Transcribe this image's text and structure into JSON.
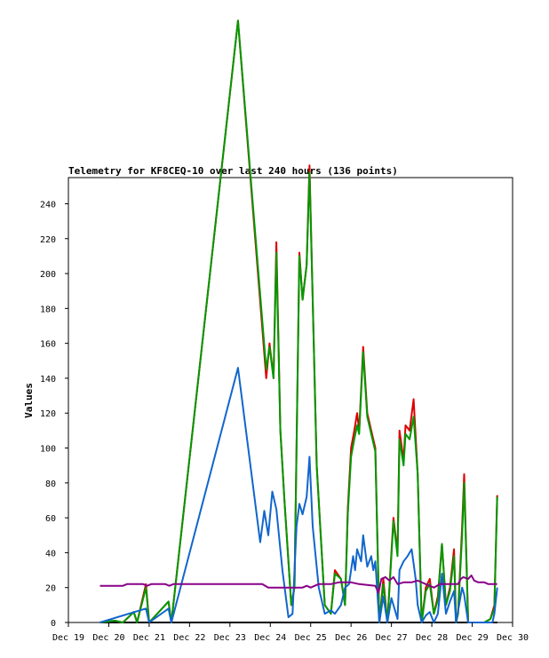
{
  "chart_data": {
    "type": "line",
    "title": "Telemetry for KF8CEQ-10 over last 240 hours (136 points)",
    "xlabel": "",
    "ylabel": "Values",
    "ylim": [
      0,
      255
    ],
    "xlim": [
      19.0,
      30.0
    ],
    "x_ticks": [
      "Dec 19",
      "Dec 20",
      "Dec 21",
      "Dec 22",
      "Dec 23",
      "Dec 24",
      "Dec 25",
      "Dec 26",
      "Dec 27",
      "Dec 28",
      "Dec 29",
      "Dec 30"
    ],
    "y_ticks": [
      0,
      20,
      40,
      60,
      80,
      100,
      120,
      140,
      160,
      180,
      200,
      220,
      240
    ],
    "grid": false,
    "x_unit": "day of December",
    "series": [
      {
        "color": "#000000",
        "points": [
          [
            19.78,
            0
          ],
          [
            29.62,
            0
          ]
        ]
      },
      {
        "color": "#dd0000",
        "points": [
          [
            19.78,
            0
          ],
          [
            20.15,
            1
          ],
          [
            20.35,
            0
          ],
          [
            20.62,
            6
          ],
          [
            20.7,
            0
          ],
          [
            20.92,
            22
          ],
          [
            21.0,
            0
          ],
          [
            21.48,
            12
          ],
          [
            21.55,
            0
          ],
          [
            23.2,
            345
          ],
          [
            23.9,
            140
          ],
          [
            23.98,
            160
          ],
          [
            24.08,
            140
          ],
          [
            24.15,
            218
          ],
          [
            24.25,
            110
          ],
          [
            24.35,
            70
          ],
          [
            24.52,
            10
          ],
          [
            24.6,
            20
          ],
          [
            24.72,
            212
          ],
          [
            24.8,
            185
          ],
          [
            24.9,
            205
          ],
          [
            24.97,
            262
          ],
          [
            25.05,
            185
          ],
          [
            25.15,
            90
          ],
          [
            25.35,
            10
          ],
          [
            25.5,
            5
          ],
          [
            25.6,
            30
          ],
          [
            25.75,
            25
          ],
          [
            25.85,
            10
          ],
          [
            25.92,
            65
          ],
          [
            26.0,
            100
          ],
          [
            26.08,
            110
          ],
          [
            26.15,
            120
          ],
          [
            26.2,
            110
          ],
          [
            26.3,
            158
          ],
          [
            26.4,
            120
          ],
          [
            26.5,
            110
          ],
          [
            26.6,
            100
          ],
          [
            26.7,
            0
          ],
          [
            26.8,
            25
          ],
          [
            26.9,
            0
          ],
          [
            27.0,
            40
          ],
          [
            27.05,
            60
          ],
          [
            27.15,
            40
          ],
          [
            27.2,
            110
          ],
          [
            27.3,
            93
          ],
          [
            27.35,
            113
          ],
          [
            27.45,
            110
          ],
          [
            27.55,
            128
          ],
          [
            27.65,
            85
          ],
          [
            27.75,
            0
          ],
          [
            27.85,
            20
          ],
          [
            27.95,
            25
          ],
          [
            28.05,
            5
          ],
          [
            28.15,
            15
          ],
          [
            28.25,
            45
          ],
          [
            28.35,
            10
          ],
          [
            28.45,
            20
          ],
          [
            28.55,
            42
          ],
          [
            28.6,
            0
          ],
          [
            28.65,
            5
          ],
          [
            28.75,
            55
          ],
          [
            28.8,
            85
          ],
          [
            28.9,
            0
          ],
          [
            29.0,
            0
          ],
          [
            29.3,
            0
          ],
          [
            29.45,
            2
          ],
          [
            29.55,
            10
          ],
          [
            29.62,
            73
          ]
        ]
      },
      {
        "color": "#009900",
        "points": [
          [
            19.78,
            0
          ],
          [
            20.15,
            1
          ],
          [
            20.35,
            0
          ],
          [
            20.62,
            6
          ],
          [
            20.7,
            0
          ],
          [
            20.92,
            20
          ],
          [
            21.0,
            0
          ],
          [
            21.48,
            12
          ],
          [
            21.55,
            0
          ],
          [
            23.2,
            345
          ],
          [
            23.9,
            145
          ],
          [
            23.98,
            158
          ],
          [
            24.08,
            140
          ],
          [
            24.15,
            212
          ],
          [
            24.25,
            110
          ],
          [
            24.35,
            70
          ],
          [
            24.52,
            10
          ],
          [
            24.6,
            20
          ],
          [
            24.72,
            210
          ],
          [
            24.8,
            185
          ],
          [
            24.9,
            205
          ],
          [
            24.97,
            258
          ],
          [
            25.05,
            185
          ],
          [
            25.15,
            90
          ],
          [
            25.35,
            10
          ],
          [
            25.5,
            5
          ],
          [
            25.6,
            28
          ],
          [
            25.75,
            25
          ],
          [
            25.85,
            10
          ],
          [
            25.92,
            62
          ],
          [
            26.0,
            95
          ],
          [
            26.08,
            105
          ],
          [
            26.15,
            113
          ],
          [
            26.2,
            108
          ],
          [
            26.3,
            155
          ],
          [
            26.4,
            118
          ],
          [
            26.5,
            108
          ],
          [
            26.6,
            98
          ],
          [
            26.7,
            0
          ],
          [
            26.8,
            22
          ],
          [
            26.9,
            0
          ],
          [
            27.0,
            38
          ],
          [
            27.05,
            58
          ],
          [
            27.15,
            38
          ],
          [
            27.2,
            105
          ],
          [
            27.3,
            90
          ],
          [
            27.35,
            108
          ],
          [
            27.45,
            105
          ],
          [
            27.55,
            118
          ],
          [
            27.65,
            85
          ],
          [
            27.75,
            0
          ],
          [
            27.85,
            18
          ],
          [
            27.95,
            22
          ],
          [
            28.05,
            5
          ],
          [
            28.15,
            13
          ],
          [
            28.25,
            45
          ],
          [
            28.35,
            10
          ],
          [
            28.45,
            18
          ],
          [
            28.55,
            38
          ],
          [
            28.6,
            0
          ],
          [
            28.65,
            5
          ],
          [
            28.75,
            50
          ],
          [
            28.8,
            80
          ],
          [
            28.9,
            0
          ],
          [
            29.0,
            0
          ],
          [
            29.3,
            0
          ],
          [
            29.45,
            2
          ],
          [
            29.55,
            8
          ],
          [
            29.62,
            72
          ]
        ]
      },
      {
        "color": "#1166cc",
        "points": [
          [
            19.78,
            0
          ],
          [
            20.92,
            8
          ],
          [
            21.0,
            0
          ],
          [
            21.48,
            8
          ],
          [
            21.55,
            0
          ],
          [
            23.2,
            146
          ],
          [
            23.75,
            46
          ],
          [
            23.85,
            64
          ],
          [
            23.95,
            50
          ],
          [
            24.05,
            75
          ],
          [
            24.15,
            65
          ],
          [
            24.3,
            30
          ],
          [
            24.45,
            3
          ],
          [
            24.55,
            5
          ],
          [
            24.65,
            55
          ],
          [
            24.72,
            68
          ],
          [
            24.8,
            62
          ],
          [
            24.9,
            72
          ],
          [
            24.97,
            95
          ],
          [
            25.05,
            55
          ],
          [
            25.2,
            20
          ],
          [
            25.35,
            5
          ],
          [
            25.5,
            7
          ],
          [
            25.6,
            5
          ],
          [
            25.75,
            10
          ],
          [
            25.85,
            20
          ],
          [
            25.95,
            22
          ],
          [
            26.05,
            38
          ],
          [
            26.1,
            30
          ],
          [
            26.15,
            42
          ],
          [
            26.25,
            35
          ],
          [
            26.3,
            50
          ],
          [
            26.4,
            32
          ],
          [
            26.5,
            38
          ],
          [
            26.55,
            30
          ],
          [
            26.6,
            35
          ],
          [
            26.7,
            0
          ],
          [
            26.8,
            15
          ],
          [
            26.9,
            0
          ],
          [
            27.0,
            14
          ],
          [
            27.05,
            10
          ],
          [
            27.15,
            2
          ],
          [
            27.2,
            30
          ],
          [
            27.3,
            35
          ],
          [
            27.4,
            38
          ],
          [
            27.5,
            42
          ],
          [
            27.6,
            25
          ],
          [
            27.65,
            10
          ],
          [
            27.75,
            0
          ],
          [
            27.85,
            4
          ],
          [
            27.95,
            6
          ],
          [
            28.05,
            0
          ],
          [
            28.15,
            5
          ],
          [
            28.25,
            28
          ],
          [
            28.35,
            5
          ],
          [
            28.45,
            12
          ],
          [
            28.55,
            18
          ],
          [
            28.6,
            0
          ],
          [
            28.75,
            20
          ],
          [
            28.8,
            16
          ],
          [
            28.9,
            0
          ],
          [
            29.0,
            0
          ],
          [
            29.5,
            0
          ],
          [
            29.55,
            5
          ],
          [
            29.62,
            20
          ]
        ]
      },
      {
        "color": "#880088",
        "points": [
          [
            19.78,
            21
          ],
          [
            20.35,
            21
          ],
          [
            20.45,
            22
          ],
          [
            20.85,
            22
          ],
          [
            20.95,
            21
          ],
          [
            21.05,
            22
          ],
          [
            21.4,
            22
          ],
          [
            21.5,
            21
          ],
          [
            21.6,
            22
          ],
          [
            23.8,
            22
          ],
          [
            23.95,
            20
          ],
          [
            24.8,
            20
          ],
          [
            24.9,
            21
          ],
          [
            25.0,
            20
          ],
          [
            25.1,
            21
          ],
          [
            25.2,
            22
          ],
          [
            25.5,
            22
          ],
          [
            25.7,
            23
          ],
          [
            26.0,
            23
          ],
          [
            26.2,
            22
          ],
          [
            26.6,
            21
          ],
          [
            26.68,
            17
          ],
          [
            26.75,
            25
          ],
          [
            26.85,
            26
          ],
          [
            26.95,
            24
          ],
          [
            27.05,
            26
          ],
          [
            27.15,
            22
          ],
          [
            27.3,
            23
          ],
          [
            27.5,
            23
          ],
          [
            27.65,
            24
          ],
          [
            27.85,
            22
          ],
          [
            27.95,
            21
          ],
          [
            28.05,
            20
          ],
          [
            28.2,
            22
          ],
          [
            28.55,
            22
          ],
          [
            28.65,
            22
          ],
          [
            28.72,
            25
          ],
          [
            28.78,
            26
          ],
          [
            28.9,
            25
          ],
          [
            28.98,
            27
          ],
          [
            29.05,
            24
          ],
          [
            29.15,
            23
          ],
          [
            29.3,
            23
          ],
          [
            29.4,
            22
          ],
          [
            29.62,
            22
          ]
        ]
      }
    ]
  }
}
